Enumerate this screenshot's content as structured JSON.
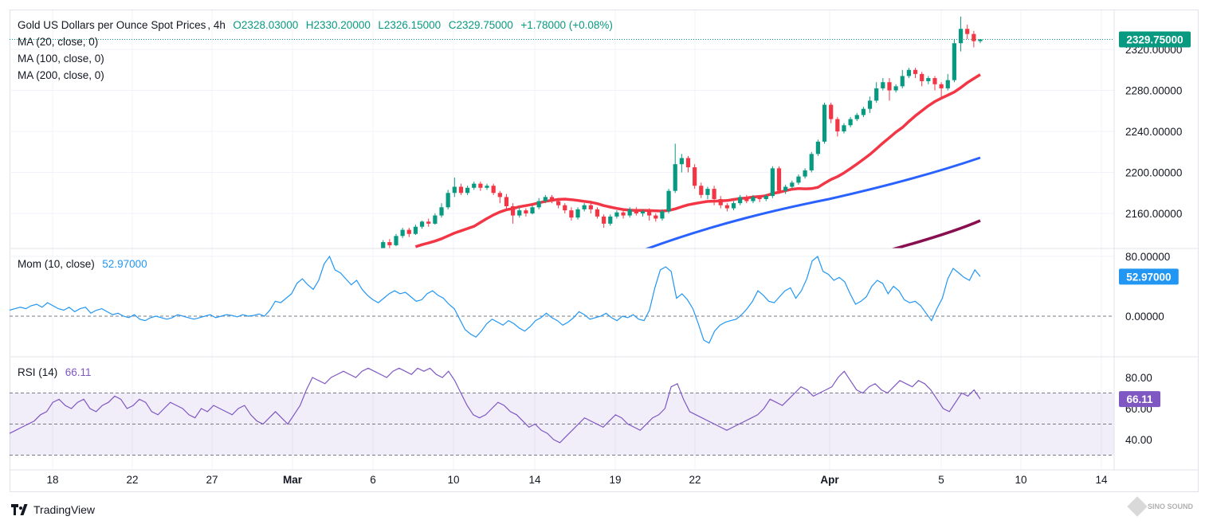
{
  "header": {
    "symbol": "Gold US Dollars per Ounce Spot Prices",
    "interval": "4h",
    "open": "O2328.03000",
    "high": "H2330.20000",
    "low": "L2326.15000",
    "close": "C2329.75000",
    "change": "+1.78000 (+0.08%)"
  },
  "indicators": {
    "ma20": "MA (20, close, 0)",
    "ma100": "MA (100, close, 0)",
    "ma200": "MA (200, close, 0)",
    "mom_label": "Mom (10, close)",
    "mom_value": "52.97000",
    "rsi_label": "RSI (14)",
    "rsi_value": "66.11"
  },
  "price_tag": "2329.75000",
  "mom_tag": "52.97000",
  "rsi_tag": "66.11",
  "price_axis_labels": [
    "2320.00000",
    "2280.00000",
    "2240.00000",
    "2200.00000",
    "2160.00000"
  ],
  "mom_axis_labels": [
    "80.00000",
    "0.00000"
  ],
  "rsi_axis_labels": [
    "80.00",
    "60.00",
    "40.00"
  ],
  "date_labels": [
    "18",
    "22",
    "27",
    "Mar",
    "6",
    "10",
    "14",
    "19",
    "22",
    "Apr",
    "5",
    "10",
    "14"
  ],
  "footer": {
    "brand": "TradingView",
    "watermark": "SINO SOUND"
  },
  "colors": {
    "up": "#089981",
    "down": "#f23645",
    "ma20": "#f23645",
    "ma100": "#2962ff",
    "ma200": "#880e4f",
    "mom": "#2196f3",
    "rsi": "#7e57c2",
    "price_tag": "#089981"
  },
  "chart_data": [
    {
      "type": "candlestick",
      "title": "Gold US Dollars per Ounce Spot Prices, 4h",
      "x_labels": [
        "18",
        "22",
        "27",
        "Mar",
        "6",
        "10",
        "14",
        "19",
        "22",
        "Apr",
        "5",
        "10",
        "14"
      ],
      "ylim": [
        2112,
        2343
      ],
      "candles": [
        [
          2105,
          2108,
          2103,
          2109
        ],
        [
          2108,
          2113,
          2106,
          2115
        ],
        [
          2113,
          2110,
          2108,
          2116
        ],
        [
          2110,
          2118,
          2109,
          2120
        ],
        [
          2118,
          2124,
          2116,
          2126
        ],
        [
          2124,
          2132,
          2122,
          2134
        ],
        [
          2132,
          2129,
          2126,
          2135
        ],
        [
          2129,
          2138,
          2128,
          2140
        ],
        [
          2138,
          2144,
          2136,
          2146
        ],
        [
          2144,
          2140,
          2137,
          2146
        ],
        [
          2140,
          2147,
          2139,
          2149
        ],
        [
          2147,
          2152,
          2145,
          2153
        ],
        [
          2152,
          2150,
          2147,
          2155
        ],
        [
          2150,
          2158,
          2149,
          2160
        ],
        [
          2158,
          2166,
          2156,
          2170
        ],
        [
          2166,
          2180,
          2164,
          2183
        ],
        [
          2180,
          2186,
          2176,
          2195
        ],
        [
          2186,
          2180,
          2178,
          2189
        ],
        [
          2180,
          2185,
          2178,
          2187
        ],
        [
          2185,
          2189,
          2183,
          2191
        ],
        [
          2189,
          2185,
          2182,
          2191
        ],
        [
          2185,
          2187,
          2183,
          2189
        ],
        [
          2187,
          2180,
          2178,
          2189
        ],
        [
          2180,
          2176,
          2170,
          2182
        ],
        [
          2176,
          2167,
          2164,
          2179
        ],
        [
          2167,
          2158,
          2150,
          2170
        ],
        [
          2158,
          2163,
          2156,
          2166
        ],
        [
          2163,
          2160,
          2157,
          2165
        ],
        [
          2160,
          2166,
          2159,
          2168
        ],
        [
          2166,
          2172,
          2164,
          2175
        ],
        [
          2172,
          2176,
          2170,
          2178
        ],
        [
          2176,
          2172,
          2170,
          2178
        ],
        [
          2172,
          2168,
          2165,
          2175
        ],
        [
          2168,
          2163,
          2160,
          2170
        ],
        [
          2163,
          2156,
          2153,
          2166
        ],
        [
          2156,
          2164,
          2154,
          2166
        ],
        [
          2164,
          2168,
          2162,
          2170
        ],
        [
          2168,
          2164,
          2160,
          2170
        ],
        [
          2164,
          2157,
          2155,
          2166
        ],
        [
          2157,
          2150,
          2146,
          2159
        ],
        [
          2150,
          2157,
          2148,
          2159
        ],
        [
          2157,
          2161,
          2155,
          2163
        ],
        [
          2161,
          2158,
          2155,
          2163
        ],
        [
          2158,
          2164,
          2156,
          2166
        ],
        [
          2164,
          2160,
          2158,
          2166
        ],
        [
          2160,
          2162,
          2157,
          2164
        ],
        [
          2162,
          2158,
          2153,
          2165
        ],
        [
          2158,
          2155,
          2152,
          2160
        ],
        [
          2155,
          2162,
          2153,
          2164
        ],
        [
          2162,
          2182,
          2160,
          2184
        ],
        [
          2182,
          2208,
          2180,
          2228
        ],
        [
          2208,
          2214,
          2200,
          2218
        ],
        [
          2214,
          2205,
          2200,
          2216
        ],
        [
          2205,
          2187,
          2184,
          2208
        ],
        [
          2187,
          2178,
          2175,
          2190
        ],
        [
          2178,
          2184,
          2174,
          2186
        ],
        [
          2184,
          2174,
          2168,
          2187
        ],
        [
          2174,
          2168,
          2165,
          2177
        ],
        [
          2168,
          2165,
          2162,
          2170
        ],
        [
          2165,
          2170,
          2163,
          2172
        ],
        [
          2170,
          2176,
          2168,
          2178
        ],
        [
          2176,
          2172,
          2170,
          2178
        ],
        [
          2172,
          2176,
          2170,
          2178
        ],
        [
          2176,
          2174,
          2171,
          2178
        ],
        [
          2174,
          2177,
          2172,
          2179
        ],
        [
          2177,
          2204,
          2175,
          2206
        ],
        [
          2204,
          2182,
          2179,
          2206
        ],
        [
          2182,
          2186,
          2179,
          2188
        ],
        [
          2186,
          2190,
          2184,
          2192
        ],
        [
          2190,
          2196,
          2188,
          2198
        ],
        [
          2196,
          2202,
          2194,
          2204
        ],
        [
          2202,
          2218,
          2200,
          2220
        ],
        [
          2218,
          2230,
          2216,
          2232
        ],
        [
          2230,
          2266,
          2228,
          2268
        ],
        [
          2266,
          2252,
          2248,
          2268
        ],
        [
          2252,
          2240,
          2235,
          2254
        ],
        [
          2240,
          2246,
          2238,
          2248
        ],
        [
          2246,
          2252,
          2244,
          2254
        ],
        [
          2252,
          2256,
          2250,
          2258
        ],
        [
          2256,
          2262,
          2254,
          2264
        ],
        [
          2262,
          2270,
          2258,
          2274
        ],
        [
          2270,
          2282,
          2268,
          2288
        ],
        [
          2282,
          2288,
          2280,
          2292
        ],
        [
          2288,
          2280,
          2270,
          2292
        ],
        [
          2280,
          2284,
          2278,
          2286
        ],
        [
          2284,
          2294,
          2282,
          2300
        ],
        [
          2294,
          2300,
          2292,
          2302
        ],
        [
          2300,
          2296,
          2292,
          2302
        ],
        [
          2296,
          2289,
          2284,
          2298
        ],
        [
          2289,
          2292,
          2286,
          2294
        ],
        [
          2292,
          2286,
          2280,
          2294
        ],
        [
          2286,
          2282,
          2272,
          2288
        ],
        [
          2282,
          2290,
          2280,
          2296
        ],
        [
          2290,
          2326,
          2288,
          2330
        ],
        [
          2326,
          2340,
          2318,
          2352
        ],
        [
          2340,
          2335,
          2330,
          2344
        ],
        [
          2335,
          2328,
          2322,
          2338
        ],
        [
          2328,
          2329.75,
          2326.15,
          2330.2
        ]
      ]
    },
    {
      "type": "line",
      "title": "Mom (10, close)",
      "ylim": [
        -40,
        95
      ],
      "zero_line": 0,
      "last": 52.97,
      "values": [
        8,
        10,
        12,
        10,
        14,
        16,
        12,
        18,
        14,
        10,
        8,
        12,
        6,
        10,
        12,
        4,
        8,
        10,
        6,
        2,
        4,
        0,
        -2,
        2,
        -4,
        -6,
        -2,
        0,
        -2,
        -4,
        -2,
        2,
        0,
        -2,
        -4,
        -2,
        0,
        2,
        -2,
        0,
        2,
        1,
        -1,
        2,
        0,
        1,
        3,
        0,
        8,
        20,
        18,
        24,
        30,
        44,
        50,
        42,
        36,
        48,
        70,
        80,
        62,
        58,
        50,
        42,
        48,
        36,
        28,
        22,
        18,
        24,
        30,
        34,
        30,
        32,
        26,
        20,
        22,
        30,
        34,
        28,
        24,
        16,
        10,
        -4,
        -18,
        -24,
        -28,
        -20,
        -10,
        -4,
        -8,
        -12,
        -6,
        -10,
        -16,
        -20,
        -14,
        -6,
        -2,
        4,
        -2,
        -6,
        -12,
        -8,
        -2,
        6,
        2,
        -4,
        -2,
        0,
        4,
        -2,
        -6,
        0,
        -2,
        2,
        -4,
        -6,
        8,
        38,
        62,
        66,
        60,
        24,
        30,
        22,
        10,
        -10,
        -32,
        -36,
        -20,
        -12,
        -8,
        -6,
        -4,
        2,
        10,
        20,
        34,
        28,
        20,
        18,
        26,
        34,
        38,
        24,
        34,
        50,
        74,
        80,
        60,
        56,
        48,
        52,
        46,
        30,
        16,
        20,
        26,
        40,
        48,
        44,
        30,
        40,
        34,
        22,
        18,
        20,
        14,
        4,
        -6,
        10,
        24,
        50,
        64,
        58,
        52,
        48,
        62,
        52.97
      ]
    },
    {
      "type": "line",
      "title": "RSI (14)",
      "ylim": [
        30,
        88
      ],
      "bands": [
        30,
        50,
        70
      ],
      "last": 66.11,
      "values": [
        44,
        46,
        48,
        50,
        52,
        56,
        58,
        64,
        66,
        62,
        60,
        64,
        66,
        60,
        58,
        62,
        64,
        68,
        66,
        60,
        62,
        66,
        64,
        58,
        56,
        60,
        64,
        62,
        60,
        56,
        54,
        60,
        58,
        62,
        60,
        58,
        56,
        60,
        62,
        56,
        52,
        50,
        54,
        58,
        54,
        50,
        56,
        62,
        72,
        80,
        78,
        76,
        80,
        82,
        84,
        82,
        80,
        84,
        86,
        84,
        82,
        80,
        84,
        86,
        84,
        82,
        86,
        84,
        86,
        82,
        80,
        84,
        78,
        70,
        62,
        56,
        54,
        56,
        60,
        64,
        62,
        58,
        56,
        52,
        48,
        50,
        46,
        44,
        40,
        38,
        42,
        46,
        50,
        54,
        52,
        50,
        48,
        52,
        56,
        54,
        50,
        48,
        46,
        50,
        54,
        56,
        60,
        74,
        76,
        66,
        58,
        56,
        54,
        52,
        50,
        48,
        46,
        48,
        50,
        52,
        54,
        56,
        60,
        66,
        64,
        62,
        66,
        70,
        74,
        72,
        68,
        70,
        72,
        74,
        80,
        84,
        78,
        72,
        70,
        74,
        76,
        72,
        70,
        74,
        78,
        76,
        74,
        78,
        76,
        72,
        66,
        60,
        58,
        64,
        70,
        68,
        72,
        66.11
      ]
    }
  ]
}
